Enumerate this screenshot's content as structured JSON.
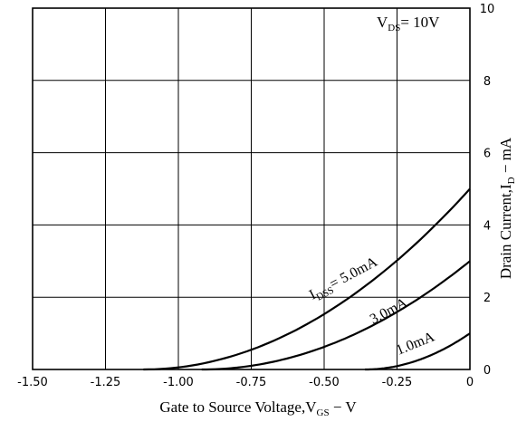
{
  "chart_data": {
    "type": "line",
    "xlabel": {
      "main": "Gate to Source Voltage,V",
      "sub": "GS",
      "unit": " − V"
    },
    "ylabel": {
      "main": "Drain Current,I",
      "sub": "D",
      "unit": " − mA"
    },
    "xlim": [
      -1.5,
      0
    ],
    "ylim": [
      0,
      10
    ],
    "x_ticks": [
      "-1.50",
      "-1.25",
      "-1.00",
      "-0.75",
      "-0.50",
      "-0.25",
      "0"
    ],
    "y_ticks": [
      "0",
      "2",
      "4",
      "6",
      "8",
      "10"
    ],
    "grid": true,
    "condition": {
      "main": "V",
      "sub": "DS",
      "value": "= 10V"
    },
    "series": [
      {
        "label": "I",
        "label_sub": "DSS",
        "label_value": "= 5.0mA",
        "idss": 5.0,
        "vp": -1.12,
        "x": [
          -1.12,
          -1.0,
          -0.75,
          -0.5,
          -0.25,
          0
        ],
        "y": [
          0,
          0.06,
          0.75,
          1.95,
          3.3,
          4.9
        ]
      },
      {
        "label": "3.0mA",
        "idss": 3.0,
        "vp": -0.92,
        "x": [
          -0.92,
          -0.75,
          -0.5,
          -0.25,
          0
        ],
        "y": [
          0,
          0.1,
          0.6,
          1.55,
          2.95
        ]
      },
      {
        "label": "1.0mA",
        "idss": 1.0,
        "vp": -0.36,
        "x": [
          -0.36,
          -0.25,
          -0.1,
          0
        ],
        "y": [
          0,
          0.12,
          0.5,
          1.0
        ]
      }
    ]
  }
}
